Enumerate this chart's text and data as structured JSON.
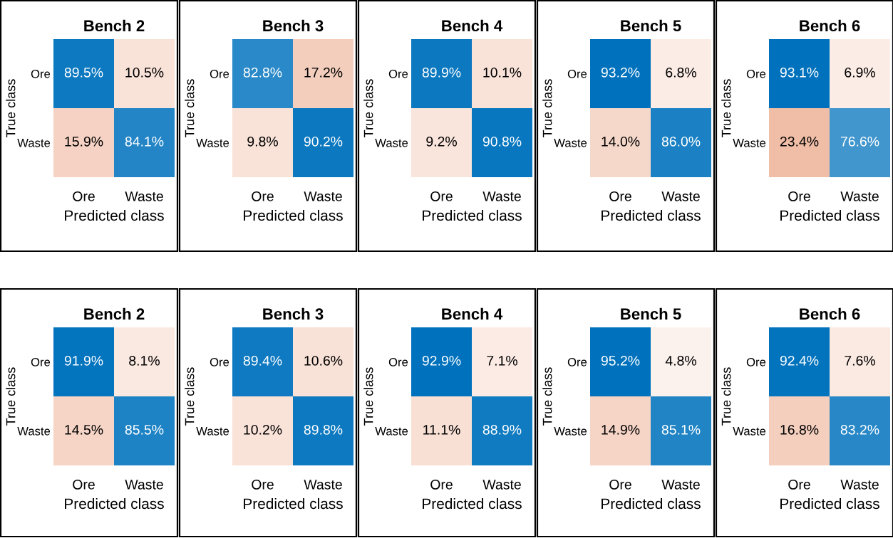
{
  "chart_data": [
    {
      "type": "heatmap",
      "title": "Bench 2",
      "xlabel": "Predicted class",
      "ylabel": "True class",
      "categories": [
        "Ore",
        "Waste"
      ],
      "y_categories": [
        "Ore",
        "Waste"
      ],
      "cells": [
        [
          89.5,
          10.5
        ],
        [
          15.9,
          84.1
        ]
      ],
      "cell_labels": [
        [
          "89.5%",
          "10.5%"
        ],
        [
          "15.9%",
          "84.1%"
        ]
      ]
    },
    {
      "type": "heatmap",
      "title": "Bench 3",
      "xlabel": "Predicted class",
      "ylabel": "True class",
      "categories": [
        "Ore",
        "Waste"
      ],
      "y_categories": [
        "Ore",
        "Waste"
      ],
      "cells": [
        [
          82.8,
          17.2
        ],
        [
          9.8,
          90.2
        ]
      ],
      "cell_labels": [
        [
          "82.8%",
          "17.2%"
        ],
        [
          "9.8%",
          "90.2%"
        ]
      ]
    },
    {
      "type": "heatmap",
      "title": "Bench 4",
      "xlabel": "Predicted class",
      "ylabel": "True class",
      "categories": [
        "Ore",
        "Waste"
      ],
      "y_categories": [
        "Ore",
        "Waste"
      ],
      "cells": [
        [
          89.9,
          10.1
        ],
        [
          9.2,
          90.8
        ]
      ],
      "cell_labels": [
        [
          "89.9%",
          "10.1%"
        ],
        [
          "9.2%",
          "90.8%"
        ]
      ]
    },
    {
      "type": "heatmap",
      "title": "Bench 5",
      "xlabel": "Predicted class",
      "ylabel": "True class",
      "categories": [
        "Ore",
        "Waste"
      ],
      "y_categories": [
        "Ore",
        "Waste"
      ],
      "cells": [
        [
          93.2,
          6.8
        ],
        [
          14.0,
          86.0
        ]
      ],
      "cell_labels": [
        [
          "93.2%",
          "6.8%"
        ],
        [
          "14.0%",
          "86.0%"
        ]
      ]
    },
    {
      "type": "heatmap",
      "title": "Bench 6",
      "xlabel": "Predicted class",
      "ylabel": "True class",
      "categories": [
        "Ore",
        "Waste"
      ],
      "y_categories": [
        "Ore",
        "Waste"
      ],
      "cells": [
        [
          93.1,
          6.9
        ],
        [
          23.4,
          76.6
        ]
      ],
      "cell_labels": [
        [
          "93.1%",
          "6.9%"
        ],
        [
          "23.4%",
          "76.6%"
        ]
      ]
    },
    {
      "type": "heatmap",
      "title": "Bench 2",
      "xlabel": "Predicted class",
      "ylabel": "True class",
      "categories": [
        "Ore",
        "Waste"
      ],
      "y_categories": [
        "Ore",
        "Waste"
      ],
      "cells": [
        [
          91.9,
          8.1
        ],
        [
          14.5,
          85.5
        ]
      ],
      "cell_labels": [
        [
          "91.9%",
          "8.1%"
        ],
        [
          "14.5%",
          "85.5%"
        ]
      ]
    },
    {
      "type": "heatmap",
      "title": "Bench 3",
      "xlabel": "Predicted class",
      "ylabel": "True class",
      "categories": [
        "Ore",
        "Waste"
      ],
      "y_categories": [
        "Ore",
        "Waste"
      ],
      "cells": [
        [
          89.4,
          10.6
        ],
        [
          10.2,
          89.8
        ]
      ],
      "cell_labels": [
        [
          "89.4%",
          "10.6%"
        ],
        [
          "10.2%",
          "89.8%"
        ]
      ]
    },
    {
      "type": "heatmap",
      "title": "Bench 4",
      "xlabel": "Predicted class",
      "ylabel": "True class",
      "categories": [
        "Ore",
        "Waste"
      ],
      "y_categories": [
        "Ore",
        "Waste"
      ],
      "cells": [
        [
          92.9,
          7.1
        ],
        [
          11.1,
          88.9
        ]
      ],
      "cell_labels": [
        [
          "92.9%",
          "7.1%"
        ],
        [
          "11.1%",
          "88.9%"
        ]
      ]
    },
    {
      "type": "heatmap",
      "title": "Bench 5",
      "xlabel": "Predicted class",
      "ylabel": "True class",
      "categories": [
        "Ore",
        "Waste"
      ],
      "y_categories": [
        "Ore",
        "Waste"
      ],
      "cells": [
        [
          95.2,
          4.8
        ],
        [
          14.9,
          85.1
        ]
      ],
      "cell_labels": [
        [
          "95.2%",
          "4.8%"
        ],
        [
          "14.9%",
          "85.1%"
        ]
      ]
    },
    {
      "type": "heatmap",
      "title": "Bench 6",
      "xlabel": "Predicted class",
      "ylabel": "True class",
      "categories": [
        "Ore",
        "Waste"
      ],
      "y_categories": [
        "Ore",
        "Waste"
      ],
      "cells": [
        [
          92.4,
          7.6
        ],
        [
          16.8,
          83.2
        ]
      ],
      "cell_labels": [
        [
          "92.4%",
          "7.6%"
        ],
        [
          "16.8%",
          "83.2%"
        ]
      ]
    }
  ]
}
